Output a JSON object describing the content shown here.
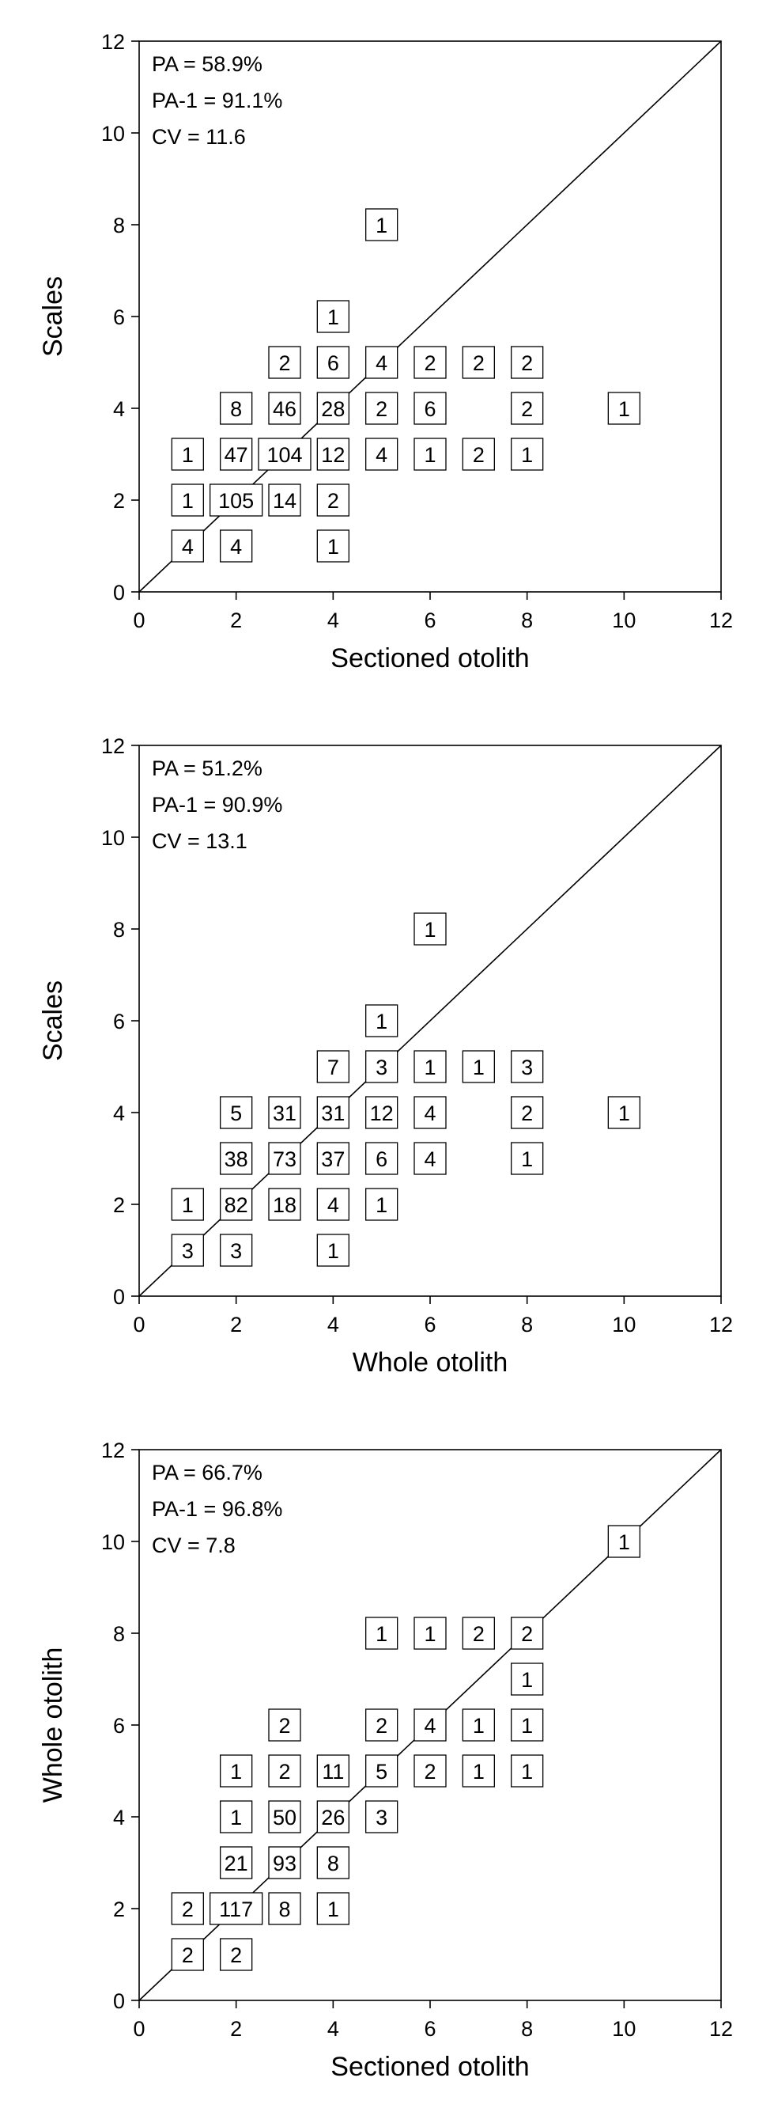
{
  "chart_data": [
    {
      "type": "scatter",
      "xlabel": "Sectioned otolith",
      "ylabel": "Scales",
      "xlim": [
        0,
        12
      ],
      "ylim": [
        0,
        12
      ],
      "xticks": [
        "0",
        "2",
        "4",
        "6",
        "8",
        "10",
        "12"
      ],
      "yticks": [
        "0",
        "2",
        "4",
        "6",
        "8",
        "10",
        "12"
      ],
      "stats": [
        "PA = 58.9%",
        "PA-1 = 91.1%",
        "CV = 11.6"
      ],
      "reference_line": "1:1",
      "points": [
        {
          "x": 5,
          "y": 8,
          "n": "1"
        },
        {
          "x": 4,
          "y": 6,
          "n": "1"
        },
        {
          "x": 3,
          "y": 5,
          "n": "2"
        },
        {
          "x": 4,
          "y": 5,
          "n": "6"
        },
        {
          "x": 5,
          "y": 5,
          "n": "4"
        },
        {
          "x": 6,
          "y": 5,
          "n": "2"
        },
        {
          "x": 7,
          "y": 5,
          "n": "2"
        },
        {
          "x": 8,
          "y": 5,
          "n": "2"
        },
        {
          "x": 2,
          "y": 4,
          "n": "8"
        },
        {
          "x": 3,
          "y": 4,
          "n": "46"
        },
        {
          "x": 4,
          "y": 4,
          "n": "28"
        },
        {
          "x": 5,
          "y": 4,
          "n": "2"
        },
        {
          "x": 6,
          "y": 4,
          "n": "6"
        },
        {
          "x": 8,
          "y": 4,
          "n": "2"
        },
        {
          "x": 10,
          "y": 4,
          "n": "1"
        },
        {
          "x": 1,
          "y": 3,
          "n": "1"
        },
        {
          "x": 2,
          "y": 3,
          "n": "47"
        },
        {
          "x": 3,
          "y": 3,
          "n": "104"
        },
        {
          "x": 4,
          "y": 3,
          "n": "12"
        },
        {
          "x": 5,
          "y": 3,
          "n": "4"
        },
        {
          "x": 6,
          "y": 3,
          "n": "1"
        },
        {
          "x": 7,
          "y": 3,
          "n": "2"
        },
        {
          "x": 8,
          "y": 3,
          "n": "1"
        },
        {
          "x": 1,
          "y": 2,
          "n": "1"
        },
        {
          "x": 2,
          "y": 2,
          "n": "105"
        },
        {
          "x": 3,
          "y": 2,
          "n": "14"
        },
        {
          "x": 4,
          "y": 2,
          "n": "2"
        },
        {
          "x": 1,
          "y": 1,
          "n": "4"
        },
        {
          "x": 2,
          "y": 1,
          "n": "4"
        },
        {
          "x": 4,
          "y": 1,
          "n": "1"
        }
      ]
    },
    {
      "type": "scatter",
      "xlabel": "Whole otolith",
      "ylabel": "Scales",
      "xlim": [
        0,
        12
      ],
      "ylim": [
        0,
        12
      ],
      "xticks": [
        "0",
        "2",
        "4",
        "6",
        "8",
        "10",
        "12"
      ],
      "yticks": [
        "0",
        "2",
        "4",
        "6",
        "8",
        "10",
        "12"
      ],
      "stats": [
        "PA = 51.2%",
        "PA-1 = 90.9%",
        "CV = 13.1"
      ],
      "reference_line": "1:1",
      "points": [
        {
          "x": 6,
          "y": 8,
          "n": "1"
        },
        {
          "x": 5,
          "y": 6,
          "n": "1"
        },
        {
          "x": 4,
          "y": 5,
          "n": "7"
        },
        {
          "x": 5,
          "y": 5,
          "n": "3"
        },
        {
          "x": 6,
          "y": 5,
          "n": "1"
        },
        {
          "x": 7,
          "y": 5,
          "n": "1"
        },
        {
          "x": 8,
          "y": 5,
          "n": "3"
        },
        {
          "x": 2,
          "y": 4,
          "n": "5"
        },
        {
          "x": 3,
          "y": 4,
          "n": "31"
        },
        {
          "x": 4,
          "y": 4,
          "n": "31"
        },
        {
          "x": 5,
          "y": 4,
          "n": "12"
        },
        {
          "x": 6,
          "y": 4,
          "n": "4"
        },
        {
          "x": 8,
          "y": 4,
          "n": "2"
        },
        {
          "x": 10,
          "y": 4,
          "n": "1"
        },
        {
          "x": 2,
          "y": 3,
          "n": "38"
        },
        {
          "x": 3,
          "y": 3,
          "n": "73"
        },
        {
          "x": 4,
          "y": 3,
          "n": "37"
        },
        {
          "x": 5,
          "y": 3,
          "n": "6"
        },
        {
          "x": 6,
          "y": 3,
          "n": "4"
        },
        {
          "x": 8,
          "y": 3,
          "n": "1"
        },
        {
          "x": 1,
          "y": 2,
          "n": "1"
        },
        {
          "x": 2,
          "y": 2,
          "n": "82"
        },
        {
          "x": 3,
          "y": 2,
          "n": "18"
        },
        {
          "x": 4,
          "y": 2,
          "n": "4"
        },
        {
          "x": 5,
          "y": 2,
          "n": "1"
        },
        {
          "x": 1,
          "y": 1,
          "n": "3"
        },
        {
          "x": 2,
          "y": 1,
          "n": "3"
        },
        {
          "x": 4,
          "y": 1,
          "n": "1"
        }
      ]
    },
    {
      "type": "scatter",
      "xlabel": "Sectioned otolith",
      "ylabel": "Whole otolith",
      "xlim": [
        0,
        12
      ],
      "ylim": [
        0,
        12
      ],
      "xticks": [
        "0",
        "2",
        "4",
        "6",
        "8",
        "10",
        "12"
      ],
      "yticks": [
        "0",
        "2",
        "4",
        "6",
        "8",
        "10",
        "12"
      ],
      "stats": [
        "PA = 66.7%",
        "PA-1 = 96.8%",
        "CV = 7.8"
      ],
      "reference_line": "1:1",
      "points": [
        {
          "x": 10,
          "y": 10,
          "n": "1"
        },
        {
          "x": 5,
          "y": 8,
          "n": "1"
        },
        {
          "x": 6,
          "y": 8,
          "n": "1"
        },
        {
          "x": 7,
          "y": 8,
          "n": "2"
        },
        {
          "x": 8,
          "y": 8,
          "n": "2"
        },
        {
          "x": 8,
          "y": 7,
          "n": "1"
        },
        {
          "x": 3,
          "y": 6,
          "n": "2"
        },
        {
          "x": 5,
          "y": 6,
          "n": "2"
        },
        {
          "x": 6,
          "y": 6,
          "n": "4"
        },
        {
          "x": 7,
          "y": 6,
          "n": "1"
        },
        {
          "x": 8,
          "y": 6,
          "n": "1"
        },
        {
          "x": 2,
          "y": 5,
          "n": "1"
        },
        {
          "x": 3,
          "y": 5,
          "n": "2"
        },
        {
          "x": 4,
          "y": 5,
          "n": "11"
        },
        {
          "x": 5,
          "y": 5,
          "n": "5"
        },
        {
          "x": 6,
          "y": 5,
          "n": "2"
        },
        {
          "x": 7,
          "y": 5,
          "n": "1"
        },
        {
          "x": 8,
          "y": 5,
          "n": "1"
        },
        {
          "x": 2,
          "y": 4,
          "n": "1"
        },
        {
          "x": 3,
          "y": 4,
          "n": "50"
        },
        {
          "x": 4,
          "y": 4,
          "n": "26"
        },
        {
          "x": 5,
          "y": 4,
          "n": "3"
        },
        {
          "x": 2,
          "y": 3,
          "n": "21"
        },
        {
          "x": 3,
          "y": 3,
          "n": "93"
        },
        {
          "x": 4,
          "y": 3,
          "n": "8"
        },
        {
          "x": 1,
          "y": 2,
          "n": "2"
        },
        {
          "x": 2,
          "y": 2,
          "n": "117"
        },
        {
          "x": 3,
          "y": 2,
          "n": "8"
        },
        {
          "x": 4,
          "y": 2,
          "n": "1"
        },
        {
          "x": 1,
          "y": 1,
          "n": "2"
        },
        {
          "x": 2,
          "y": 1,
          "n": "2"
        }
      ]
    }
  ]
}
